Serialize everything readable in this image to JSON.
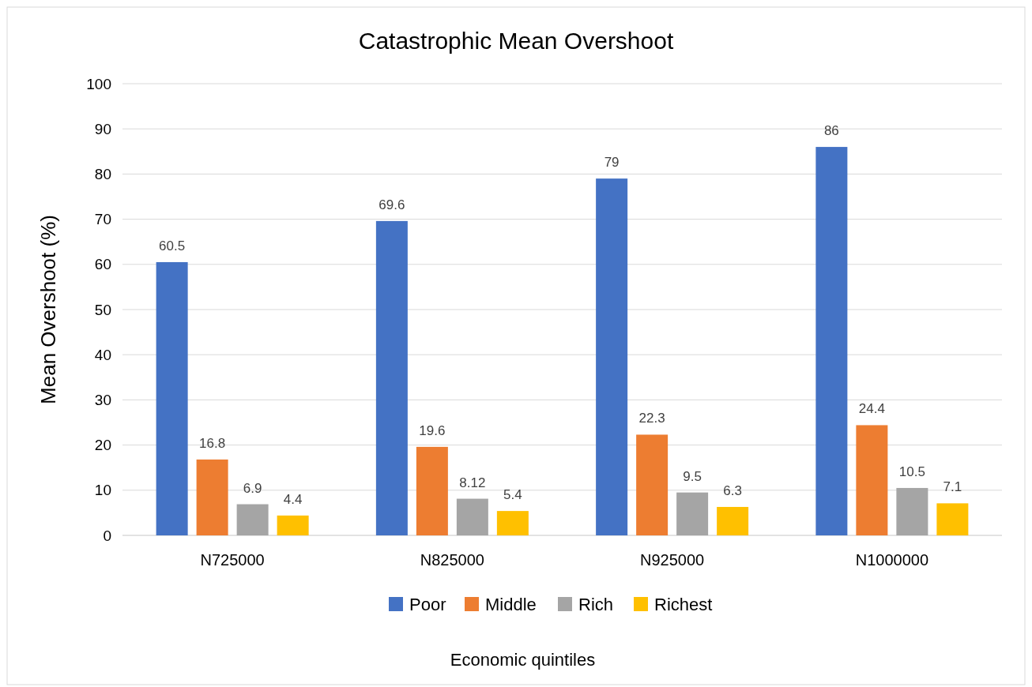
{
  "chart_data": {
    "type": "bar",
    "title": "Catastrophic Mean Overshoot",
    "xlabel": "Economic quintiles",
    "ylabel": "Mean Overshoot (%)",
    "categories": [
      "N725000",
      "N825000",
      "N925000",
      "N1000000"
    ],
    "series": [
      {
        "name": "Poor",
        "color": "#4472c4",
        "values": [
          60.5,
          69.6,
          79,
          86
        ]
      },
      {
        "name": "Middle",
        "color": "#ed7d31",
        "values": [
          16.8,
          19.6,
          22.3,
          24.4
        ]
      },
      {
        "name": "Rich",
        "color": "#a5a5a5",
        "values": [
          6.9,
          8.12,
          9.5,
          10.5
        ]
      },
      {
        "name": "Richest",
        "color": "#ffc000",
        "values": [
          4.4,
          5.4,
          6.3,
          7.1
        ]
      }
    ],
    "ylim": [
      0,
      100
    ],
    "yticks": [
      0,
      10,
      20,
      30,
      40,
      50,
      60,
      70,
      80,
      90,
      100
    ],
    "grid": "y",
    "legend": "bottom",
    "data_labels": true
  }
}
